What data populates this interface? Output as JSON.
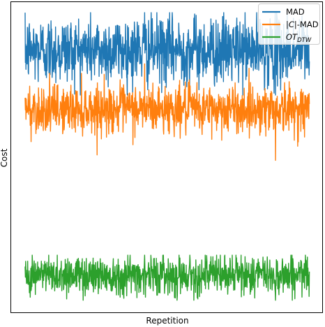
{
  "chart_data": {
    "type": "line",
    "title": "",
    "xlabel": "Repetition",
    "ylabel": "Cost",
    "xticks": [],
    "yticks": [],
    "grid": false,
    "legend": {
      "position": "upper right",
      "frame": true
    },
    "n_points": 1000,
    "xlim": [
      0,
      1000
    ],
    "ylim": [
      0,
      1
    ],
    "series": [
      {
        "name": "MAD",
        "color": "#1f77b4",
        "mean": 0.845,
        "typical_range": [
          0.78,
          0.91
        ],
        "min": 0.7,
        "max": 0.965
      },
      {
        "name": "|C|-MAD",
        "name_parts": [
          "|",
          "C",
          "|-MAD"
        ],
        "color": "#ff7f0e",
        "mean": 0.655,
        "typical_range": [
          0.61,
          0.7
        ],
        "min": 0.49,
        "max": 0.8
      },
      {
        "name": "OTDTW",
        "name_parts": [
          "OT",
          "DTW"
        ],
        "color": "#2ca02c",
        "mean": 0.122,
        "typical_range": [
          0.085,
          0.16
        ],
        "min": 0.04,
        "max": 0.185
      }
    ]
  }
}
